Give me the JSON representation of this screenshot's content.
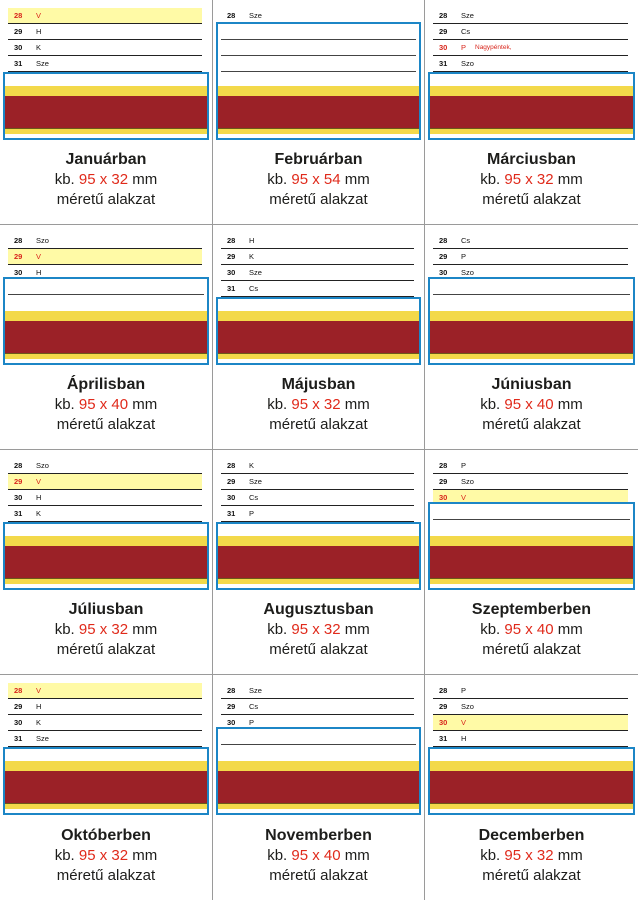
{
  "colors": {
    "blue_frame": "#1c86c6",
    "gold_band": "#f3d94a",
    "red_band": "#9b2127",
    "holiday_fill": "#fffaa6",
    "highlight_text": "#e02a1b"
  },
  "cells": [
    {
      "month": "Januárban",
      "prefix": "kb.",
      "dims": "95 x 32",
      "unit": "mm",
      "desc": "méretű alakzat",
      "rows": [
        {
          "num": "28",
          "day": "V",
          "holiday": true
        },
        {
          "num": "29",
          "day": "H"
        },
        {
          "num": "30",
          "day": "K"
        },
        {
          "num": "31",
          "day": "Sze"
        }
      ],
      "inner_lines": 1
    },
    {
      "month": "Februárban",
      "prefix": "kb.",
      "dims": "95 x 54",
      "unit": "mm",
      "desc": "méretű alakzat",
      "rows": [
        {
          "num": "28",
          "day": "Sze"
        }
      ],
      "inner_lines": 3
    },
    {
      "month": "Márciusban",
      "prefix": "kb.",
      "dims": "95 x 32",
      "unit": "mm",
      "desc": "méretű alakzat",
      "rows": [
        {
          "num": "28",
          "day": "Sze"
        },
        {
          "num": "29",
          "day": "Cs"
        },
        {
          "num": "30",
          "day": "P",
          "note": "Nagypéntek,",
          "red": true
        },
        {
          "num": "31",
          "day": "Szo"
        }
      ],
      "inner_lines": 0
    },
    {
      "month": "Áprilisban",
      "prefix": "kb.",
      "dims": "95 x 40",
      "unit": "mm",
      "desc": "méretű alakzat",
      "rows": [
        {
          "num": "28",
          "day": "Szo"
        },
        {
          "num": "29",
          "day": "V",
          "holiday": true
        },
        {
          "num": "30",
          "day": "H"
        }
      ],
      "inner_lines": 1
    },
    {
      "month": "Májusban",
      "prefix": "kb.",
      "dims": "95 x 32",
      "unit": "mm",
      "desc": "méretű alakzat",
      "rows": [
        {
          "num": "28",
          "day": "H"
        },
        {
          "num": "29",
          "day": "K"
        },
        {
          "num": "30",
          "day": "Sze"
        },
        {
          "num": "31",
          "day": "Cs"
        }
      ],
      "inner_lines": 0
    },
    {
      "month": "Júniusban",
      "prefix": "kb.",
      "dims": "95 x 40",
      "unit": "mm",
      "desc": "méretű alakzat",
      "rows": [
        {
          "num": "28",
          "day": "Cs"
        },
        {
          "num": "29",
          "day": "P"
        },
        {
          "num": "30",
          "day": "Szo"
        }
      ],
      "inner_lines": 1
    },
    {
      "month": "Júliusban",
      "prefix": "kb.",
      "dims": "95 x 32",
      "unit": "mm",
      "desc": "méretű alakzat",
      "rows": [
        {
          "num": "28",
          "day": "Szo"
        },
        {
          "num": "29",
          "day": "V",
          "holiday": true
        },
        {
          "num": "30",
          "day": "H"
        },
        {
          "num": "31",
          "day": "K"
        }
      ],
      "inner_lines": 0
    },
    {
      "month": "Augusztusban",
      "prefix": "kb.",
      "dims": "95 x 32",
      "unit": "mm",
      "desc": "méretű alakzat",
      "rows": [
        {
          "num": "28",
          "day": "K"
        },
        {
          "num": "29",
          "day": "Sze"
        },
        {
          "num": "30",
          "day": "Cs"
        },
        {
          "num": "31",
          "day": "P"
        }
      ],
      "inner_lines": 0
    },
    {
      "month": "Szeptemberben",
      "prefix": "kb.",
      "dims": "95 x 40",
      "unit": "mm",
      "desc": "méretű alakzat",
      "rows": [
        {
          "num": "28",
          "day": "P"
        },
        {
          "num": "29",
          "day": "Szo"
        },
        {
          "num": "30",
          "day": "V",
          "holiday": true
        }
      ],
      "inner_lines": 1
    },
    {
      "month": "Októberben",
      "prefix": "kb.",
      "dims": "95 x 32",
      "unit": "mm",
      "desc": "méretű alakzat",
      "rows": [
        {
          "num": "28",
          "day": "V",
          "holiday": true
        },
        {
          "num": "29",
          "day": "H"
        },
        {
          "num": "30",
          "day": "K"
        },
        {
          "num": "31",
          "day": "Sze"
        }
      ],
      "inner_lines": 0
    },
    {
      "month": "Novemberben",
      "prefix": "kb.",
      "dims": "95 x 40",
      "unit": "mm",
      "desc": "méretű alakzat",
      "rows": [
        {
          "num": "28",
          "day": "Sze"
        },
        {
          "num": "29",
          "day": "Cs"
        },
        {
          "num": "30",
          "day": "P"
        }
      ],
      "inner_lines": 1
    },
    {
      "month": "Decemberben",
      "prefix": "kb.",
      "dims": "95 x 32",
      "unit": "mm",
      "desc": "méretű alakzat",
      "rows": [
        {
          "num": "28",
          "day": "P"
        },
        {
          "num": "29",
          "day": "Szo"
        },
        {
          "num": "30",
          "day": "V",
          "holiday": true
        },
        {
          "num": "31",
          "day": "H"
        }
      ],
      "inner_lines": 0
    }
  ]
}
